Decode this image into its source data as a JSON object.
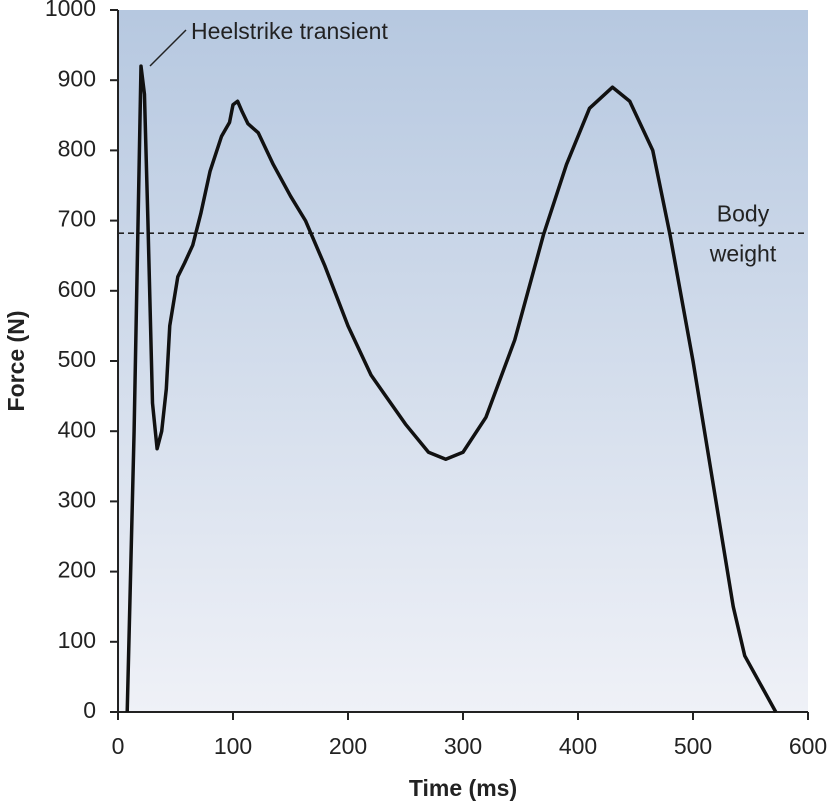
{
  "chart_data": {
    "type": "line",
    "xlabel": "Time (ms)",
    "ylabel": "Force (N)",
    "annotation": "Heelstrike transient",
    "reference_line": {
      "label": [
        "Body",
        "weight"
      ],
      "value": 682
    },
    "x": [
      8,
      14,
      20,
      23,
      26,
      30,
      34,
      38,
      42,
      45,
      52,
      58,
      65,
      72,
      80,
      90,
      97,
      100,
      104,
      108,
      113,
      122,
      135,
      150,
      163,
      180,
      200,
      220,
      250,
      270,
      285,
      300,
      320,
      345,
      370,
      390,
      410,
      430,
      445,
      465,
      480,
      500,
      520,
      535,
      545,
      572
    ],
    "series": [
      {
        "color": "#111111",
        "values": [
          0,
          400,
          920,
          880,
          700,
          440,
          375,
          400,
          460,
          550,
          620,
          640,
          665,
          710,
          770,
          820,
          840,
          865,
          870,
          855,
          838,
          825,
          780,
          735,
          700,
          635,
          550,
          480,
          410,
          370,
          360,
          370,
          420,
          530,
          680,
          780,
          860,
          890,
          870,
          800,
          680,
          500,
          300,
          150,
          80,
          0
        ]
      }
    ],
    "xlim": [
      0,
      600
    ],
    "xticks": [
      0,
      100,
      200,
      300,
      400,
      500,
      600
    ],
    "ylim": [
      0,
      1000
    ],
    "yticks": [
      0,
      100,
      200,
      300,
      400,
      500,
      600,
      700,
      800,
      900,
      1000
    ]
  }
}
